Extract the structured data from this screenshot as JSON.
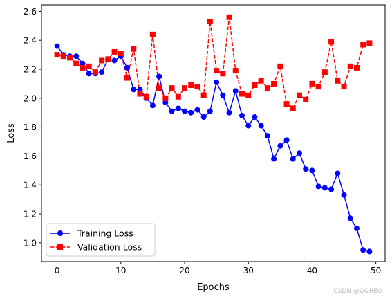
{
  "chart_data": {
    "type": "line",
    "xlabel": "Epochs",
    "ylabel": "Loss",
    "xlim": [
      -2.45,
      51.45
    ],
    "ylim": [
      0.87,
      2.645
    ],
    "xticks": [
      0,
      10,
      20,
      30,
      40,
      50
    ],
    "yticks": [
      1.0,
      1.2,
      1.4,
      1.6,
      1.8,
      2.0,
      2.2,
      2.4,
      2.6
    ],
    "grid": false,
    "legend_position": "lower-left",
    "x": [
      0,
      1,
      2,
      3,
      4,
      5,
      6,
      7,
      8,
      9,
      10,
      11,
      12,
      13,
      14,
      15,
      16,
      17,
      18,
      19,
      20,
      21,
      22,
      23,
      24,
      25,
      26,
      27,
      28,
      29,
      30,
      31,
      32,
      33,
      34,
      35,
      36,
      37,
      38,
      39,
      40,
      41,
      42,
      43,
      44,
      45,
      46,
      47,
      48,
      49
    ],
    "series": [
      {
        "name": "Training Loss",
        "color": "#0000ff",
        "linestyle": "solid",
        "marker": "circle",
        "values": [
          2.36,
          2.3,
          2.29,
          2.29,
          2.24,
          2.17,
          2.17,
          2.18,
          2.27,
          2.26,
          2.29,
          2.21,
          2.06,
          2.06,
          2.0,
          1.95,
          2.15,
          1.97,
          1.91,
          1.93,
          1.91,
          1.9,
          1.92,
          1.87,
          1.91,
          2.11,
          2.02,
          1.9,
          2.05,
          1.88,
          1.81,
          1.87,
          1.81,
          1.74,
          1.58,
          1.67,
          1.71,
          1.58,
          1.62,
          1.51,
          1.5,
          1.39,
          1.38,
          1.37,
          1.48,
          1.33,
          1.17,
          1.1,
          0.95,
          0.94
        ]
      },
      {
        "name": "Validation Loss",
        "color": "#ff0000",
        "linestyle": "dashed",
        "marker": "square",
        "values": [
          2.3,
          2.29,
          2.28,
          2.24,
          2.21,
          2.22,
          2.18,
          2.26,
          2.27,
          2.32,
          2.31,
          2.14,
          2.34,
          2.03,
          2.01,
          2.44,
          2.07,
          2.0,
          2.07,
          2.01,
          2.07,
          2.09,
          2.08,
          2.02,
          2.53,
          2.19,
          2.17,
          2.56,
          2.19,
          2.03,
          2.02,
          2.09,
          2.12,
          2.07,
          2.1,
          2.22,
          1.96,
          1.93,
          2.02,
          1.99,
          2.1,
          2.08,
          2.18,
          2.39,
          2.12,
          2.08,
          2.22,
          2.21,
          2.37,
          2.38
        ]
      }
    ]
  },
  "watermark": "CSDN @O&REO"
}
